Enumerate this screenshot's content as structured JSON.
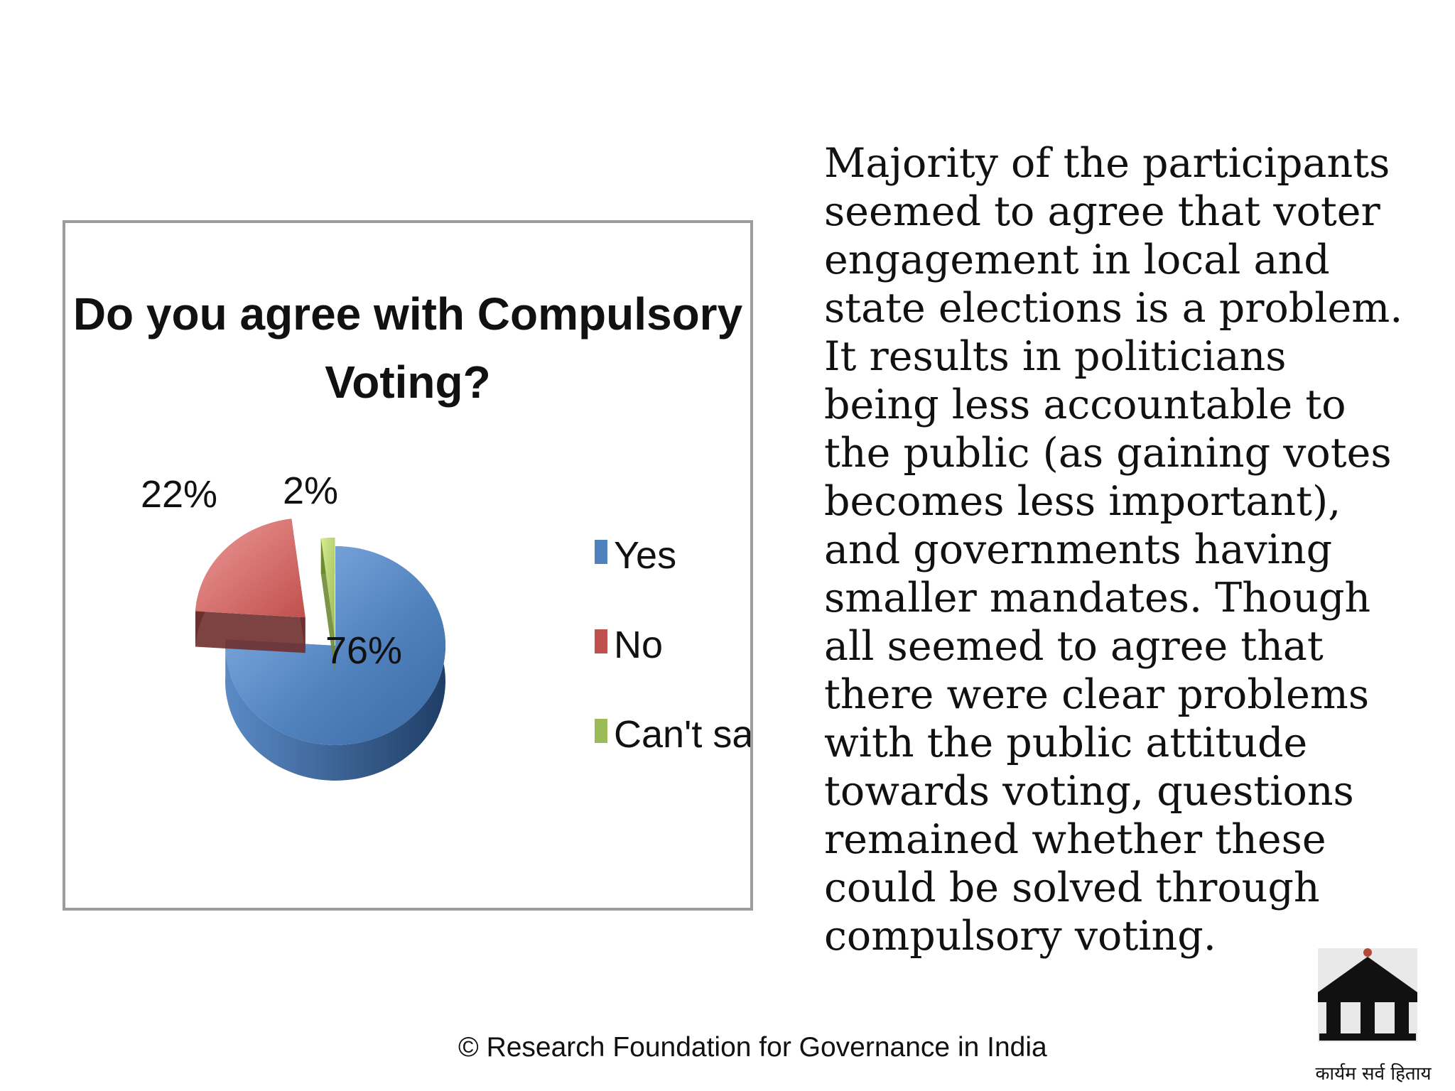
{
  "chart_data": {
    "type": "pie",
    "title_lines": [
      "Do you agree with Compulsory",
      "Voting?"
    ],
    "slices": [
      {
        "name": "Yes",
        "value": 76,
        "label": "76%",
        "color": "#4f81bd"
      },
      {
        "name": "No",
        "value": 22,
        "label": "22%",
        "color": "#c0504d"
      },
      {
        "name": "Can't say",
        "value": 2,
        "label": "2%",
        "color": "#9bbb59"
      }
    ],
    "legend_position": "right",
    "style": "3d-exploded"
  },
  "body_text": "Majority of the participants\nseemed to agree that voter\nengagement in local and\nstate elections is a problem.\nIt results in politicians\nbeing less accountable to\nthe public (as gaining votes\nbecomes less important),\nand governments having\nsmaller mandates.  Though\nall seemed to agree that\nthere were clear problems\nwith the public attitude\ntowards voting, questions\nremained whether these\ncould be solved through\ncompulsory voting.",
  "footer": "© Research Foundation for Governance in India",
  "logo": {
    "icon": "temple-pillars-icon",
    "caption": "कार्यम सर्व हिताय"
  }
}
